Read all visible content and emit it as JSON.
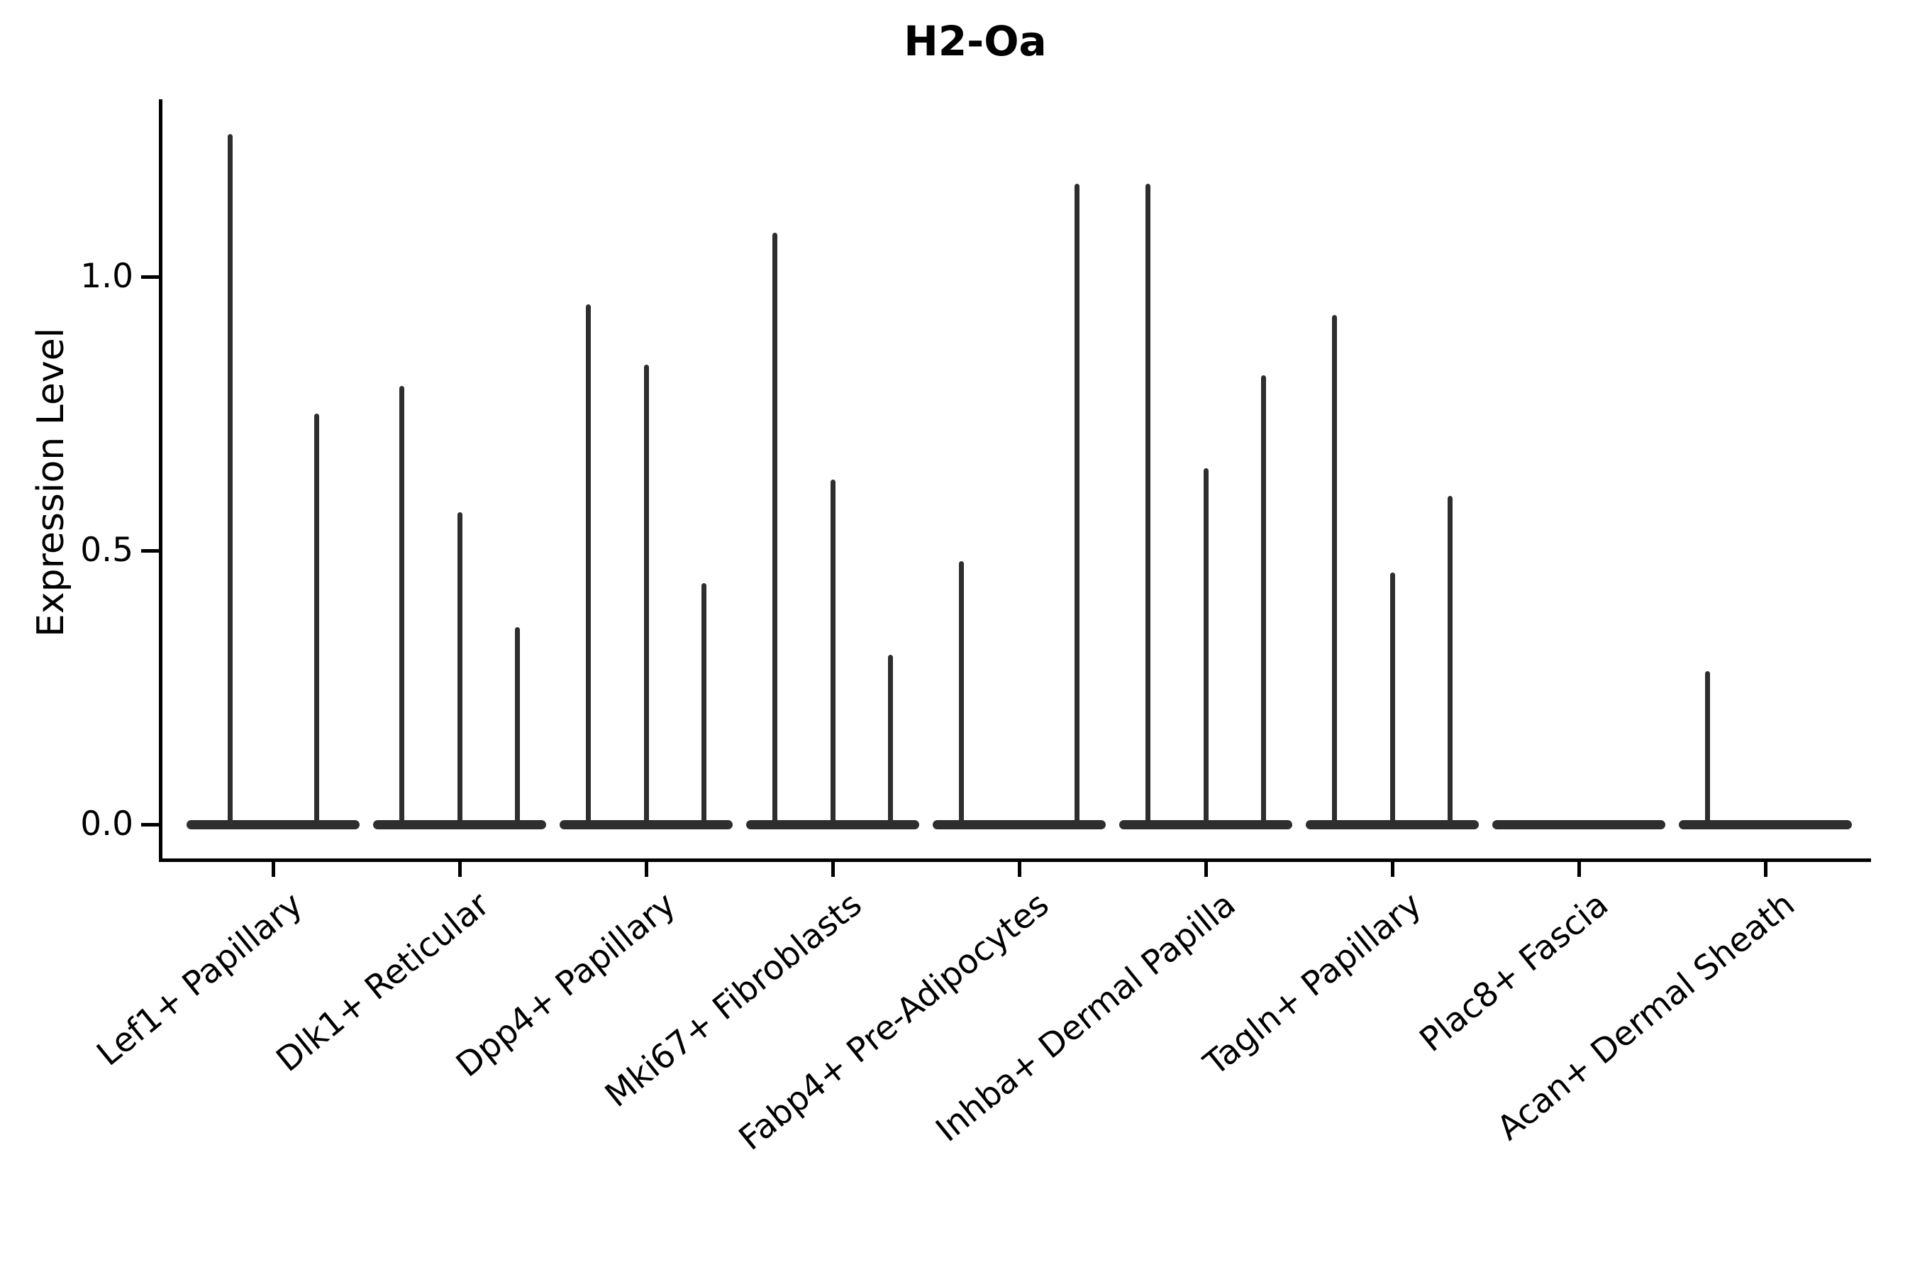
{
  "title": "H2-Oa",
  "axes": {
    "y": {
      "label": "Expression Level",
      "ticks": [
        {
          "label": "0.0",
          "value": 0.0
        },
        {
          "label": "0.5",
          "value": 0.5
        },
        {
          "label": "1.0",
          "value": 1.0
        }
      ]
    }
  },
  "colors": {
    "violin": "#2e2e2e",
    "axis": "#000000",
    "text": "#000000",
    "background": "#ffffff"
  },
  "chart_data": {
    "type": "violin",
    "title": "H2-Oa",
    "xlabel": "",
    "ylabel": "Expression Level",
    "ylim": [
      0,
      1.32
    ],
    "yticks": [
      0.0,
      0.5,
      1.0
    ],
    "grid": false,
    "legend": "none",
    "description": "Single-gene expression violin plot; each cell-type category holds several very thin violins whose mass sits at 0 with a narrow tail reaching the listed maximum expression value.",
    "categories": [
      "Lef1+ Papillary",
      "Dlk1+ Reticular",
      "Dpp4+ Papillary",
      "Mki67+ Fibroblasts",
      "Fabp4+ Pre-Adipocytes",
      "Inhba+ Dermal Papilla",
      "Tagln+ Papillary",
      "Plac8+ Fascia",
      "Acan+ Dermal Sheath"
    ],
    "series": [
      {
        "category": "Lef1+ Papillary",
        "violin_max_expression": [
          1.26,
          0.75
        ]
      },
      {
        "category": "Dlk1+ Reticular",
        "violin_max_expression": [
          0.8,
          0.57,
          0.36
        ]
      },
      {
        "category": "Dpp4+ Papillary",
        "violin_max_expression": [
          0.95,
          0.84,
          0.44
        ]
      },
      {
        "category": "Mki67+ Fibroblasts",
        "violin_max_expression": [
          1.08,
          0.63,
          0.31
        ]
      },
      {
        "category": "Fabp4+ Pre-Adipocytes",
        "violin_max_expression": [
          0.48,
          0.0,
          1.17
        ]
      },
      {
        "category": "Inhba+ Dermal Papilla",
        "violin_max_expression": [
          1.17,
          0.65,
          0.82
        ]
      },
      {
        "category": "Tagln+ Papillary",
        "violin_max_expression": [
          0.93,
          0.46,
          0.6
        ]
      },
      {
        "category": "Plac8+ Fascia",
        "violin_max_expression": [
          0.0,
          0.0,
          0.0
        ]
      },
      {
        "category": "Acan+ Dermal Sheath",
        "violin_max_expression": [
          0.28,
          0.0,
          0.0
        ]
      }
    ]
  }
}
